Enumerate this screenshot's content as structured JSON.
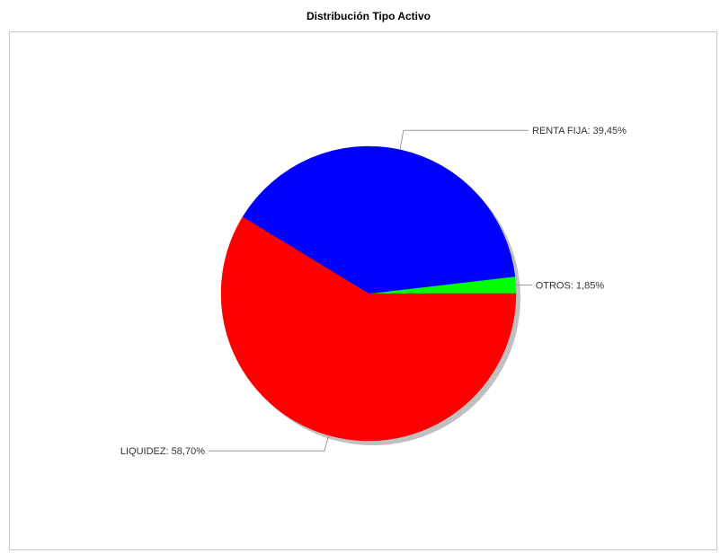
{
  "chart_data": {
    "type": "pie",
    "title": "Distribución Tipo Activo",
    "slices": [
      {
        "label": "OTROS",
        "value": 1.85,
        "value_text": "1,85%",
        "color": "#00ff00"
      },
      {
        "label": "RENTA FIJA",
        "value": 39.45,
        "value_text": "39,45%",
        "color": "#0000ff"
      },
      {
        "label": "LIQUIDEZ",
        "value": 58.7,
        "value_text": "58,70%",
        "color": "#ff0000"
      }
    ],
    "legend": "none",
    "labels": "outside-with-leader-lines"
  }
}
